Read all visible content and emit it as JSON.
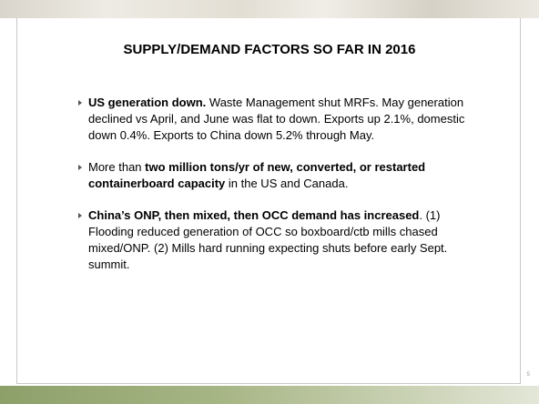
{
  "slide": {
    "title": "SUPPLY/DEMAND FACTORS SO FAR IN 2016",
    "bullets": [
      [
        {
          "text": "US generation down.",
          "bold": true
        },
        {
          "text": " Waste Management shut MRFs. May generation declined vs April, and June was flat to down. Exports up 2.1%, domestic down 0.4%. Exports to China down 5.2% through May.",
          "bold": false
        }
      ],
      [
        {
          "text": "More than ",
          "bold": false
        },
        {
          "text": "two million tons/yr of new, converted, or restarted containerboard capacity",
          "bold": true
        },
        {
          "text": " in the US and Canada.",
          "bold": false
        }
      ],
      [
        {
          "text": "China’s ONP, then mixed, then OCC demand has increased",
          "bold": true
        },
        {
          "text": ". (1) Flooding reduced generation of OCC so boxboard/ctb mills chased mixed/ONP. (2) Mills hard running expecting shuts before early Sept. summit.",
          "bold": false
        }
      ]
    ],
    "page_number": "5"
  }
}
